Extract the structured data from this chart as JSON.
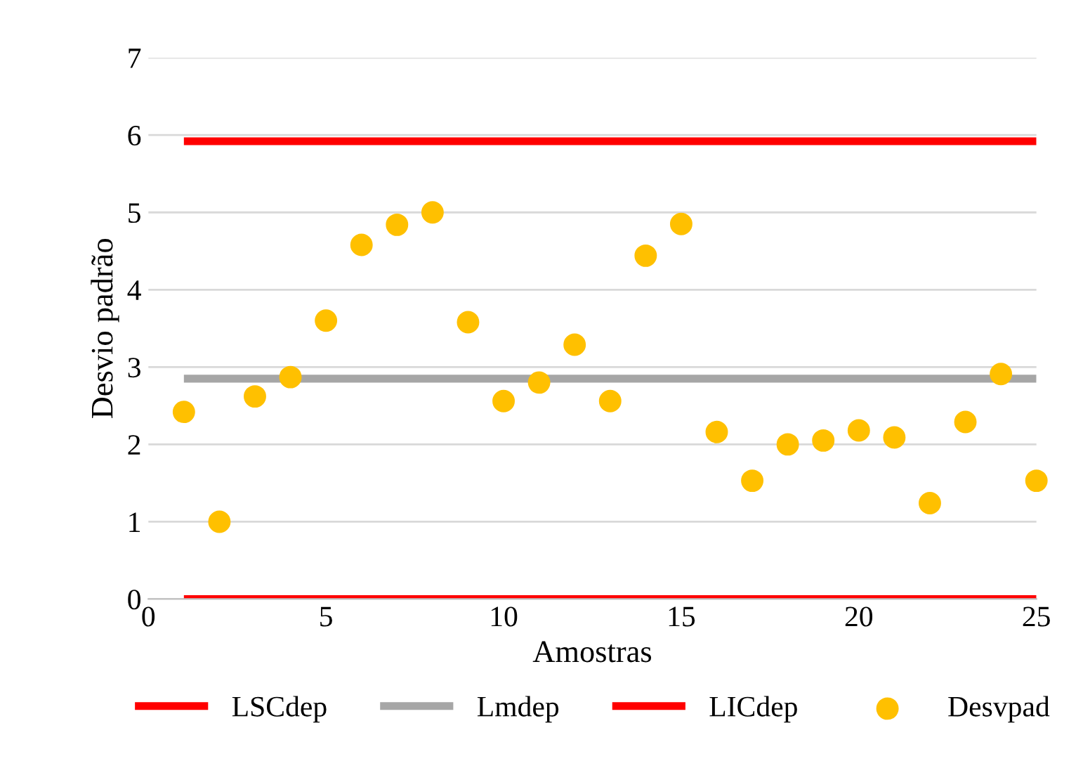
{
  "chart_data": {
    "type": "line",
    "xlabel": "Amostras",
    "ylabel": "Desvio padrão",
    "xlim": [
      0,
      25
    ],
    "xticks": [
      0,
      5,
      10,
      15,
      20,
      25
    ],
    "ylim": [
      0,
      7
    ],
    "yticks": [
      0,
      1,
      2,
      3,
      4,
      5,
      6,
      7
    ],
    "grid": "y",
    "legend": "bottom",
    "series": [
      {
        "name": "LSCdep",
        "color": "#ff0000",
        "x": [
          1,
          25
        ],
        "values": [
          5.92,
          5.92
        ]
      },
      {
        "name": "Lmdep",
        "color": "#a6a6a6",
        "x": [
          1,
          25
        ],
        "values": [
          2.85,
          2.85
        ]
      },
      {
        "name": "LICdep",
        "color": "#ff0000",
        "x": [
          1,
          25
        ],
        "values": [
          0,
          0
        ]
      },
      {
        "name": "Desvpad",
        "type": "scatter",
        "marker": "circle",
        "color": "#ffc000",
        "x": [
          1,
          2,
          3,
          4,
          5,
          6,
          7,
          8,
          9,
          10,
          11,
          12,
          13,
          14,
          15,
          16,
          17,
          18,
          19,
          20,
          21,
          22,
          23,
          24,
          25
        ],
        "values": [
          2.42,
          1.0,
          2.62,
          2.87,
          3.6,
          4.58,
          4.84,
          5.0,
          3.58,
          2.56,
          2.8,
          3.29,
          2.56,
          4.44,
          4.85,
          2.16,
          1.53,
          2.0,
          2.05,
          2.18,
          2.09,
          1.24,
          2.29,
          2.91,
          1.53
        ]
      }
    ]
  }
}
